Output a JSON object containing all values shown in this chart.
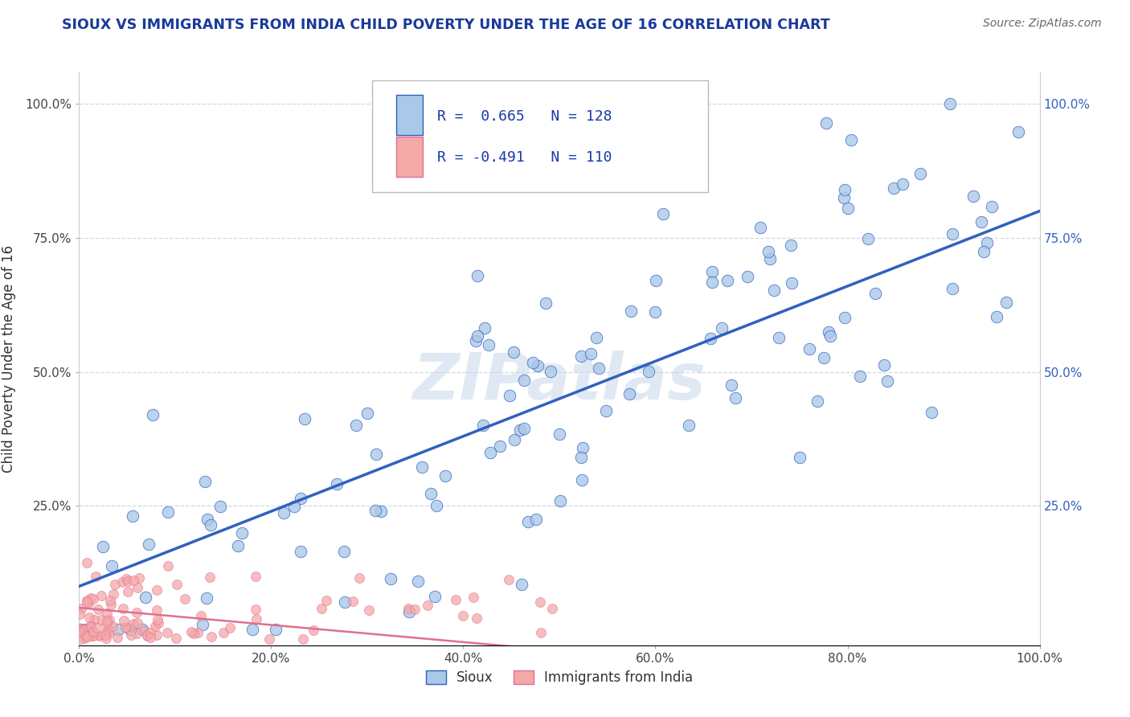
{
  "title": "SIOUX VS IMMIGRANTS FROM INDIA CHILD POVERTY UNDER THE AGE OF 16 CORRELATION CHART",
  "source": "Source: ZipAtlas.com",
  "ylabel": "Child Poverty Under the Age of 16",
  "r_sioux": 0.665,
  "n_sioux": 128,
  "r_india": -0.491,
  "n_india": 110,
  "xlim": [
    0.0,
    1.0
  ],
  "ylim": [
    -0.01,
    1.06
  ],
  "xtick_labels": [
    "0.0%",
    "20.0%",
    "40.0%",
    "60.0%",
    "80.0%",
    "100.0%"
  ],
  "xtick_vals": [
    0.0,
    0.2,
    0.4,
    0.6,
    0.8,
    1.0
  ],
  "ytick_labels": [
    "25.0%",
    "50.0%",
    "75.0%",
    "100.0%"
  ],
  "ytick_vals": [
    0.25,
    0.5,
    0.75,
    1.0
  ],
  "color_sioux": "#aac8e8",
  "color_india": "#f4a8a8",
  "line_color_sioux": "#3060c0",
  "line_color_india": "#e07090",
  "watermark_color": "#c8d8ea",
  "title_color": "#1a3a9a",
  "legend_r_color": "#1a3aaa",
  "background_color": "#ffffff",
  "grid_color": "#d0d8e4",
  "sioux_line_start_y": 0.1,
  "sioux_line_end_y": 0.8,
  "india_line_start_y": 0.06,
  "india_line_end_y": -0.02
}
